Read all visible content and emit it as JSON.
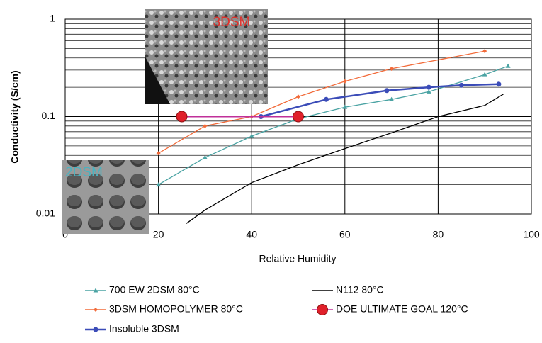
{
  "chart_data": {
    "type": "line",
    "y_label": "Conductivity (S/cm)",
    "x_label": "Relative Humidity",
    "xlim": [
      0,
      100
    ],
    "xticks": [
      0,
      20,
      40,
      60,
      80,
      100
    ],
    "ylim": [
      0.01,
      1
    ],
    "yticks": [
      0.01,
      0.1,
      1
    ],
    "log_y": true,
    "grid": true,
    "minor_grid": true,
    "legend": "bottom",
    "insets": [
      "3DSM",
      "2DSM"
    ],
    "series": [
      {
        "name": "700 EW 2DSM 80°C",
        "color": "#4aa3a3",
        "marker": "triangle",
        "x": [
          20,
          30,
          40,
          50,
          60,
          70,
          78,
          90,
          95
        ],
        "values": [
          0.02,
          0.038,
          0.063,
          0.095,
          0.125,
          0.15,
          0.18,
          0.27,
          0.33
        ]
      },
      {
        "name": "3DSM HOMOPOLYMER 80°C",
        "color": "#f26b3a",
        "marker": "diamond",
        "x": [
          20,
          30,
          40,
          50,
          60,
          70,
          90
        ],
        "values": [
          0.042,
          0.08,
          0.1,
          0.16,
          0.23,
          0.31,
          0.47
        ]
      },
      {
        "name": "Insoluble 3DSM",
        "color": "#3b4cb8",
        "marker": "circle",
        "x": [
          42,
          56,
          69,
          78,
          85,
          93
        ],
        "values": [
          0.1,
          0.15,
          0.185,
          0.2,
          0.21,
          0.215
        ]
      },
      {
        "name": "N112 80°C",
        "color": "#000000",
        "marker": "none",
        "x": [
          26,
          30,
          40,
          50,
          60,
          70,
          80,
          90,
          94
        ],
        "values": [
          0.008,
          0.011,
          0.021,
          0.032,
          0.047,
          0.068,
          0.1,
          0.13,
          0.17
        ]
      },
      {
        "name": "DOE ULTIMATE GOAL 120°C",
        "color": "#e0202a",
        "line_color": "#c0309a",
        "marker": "big-circle",
        "x": [
          25,
          50
        ],
        "values": [
          0.1,
          0.1
        ]
      }
    ]
  }
}
